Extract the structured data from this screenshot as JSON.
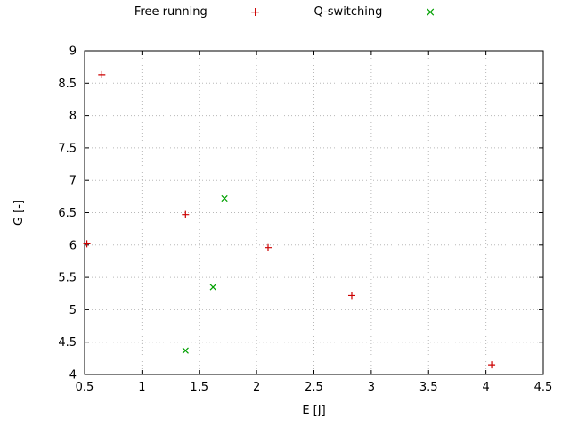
{
  "chart_data": {
    "type": "scatter",
    "title": "",
    "xlabel": "E [J]",
    "ylabel": "G [-]",
    "xlim": [
      0.5,
      4.5
    ],
    "ylim": [
      4,
      9
    ],
    "xticks": [
      0.5,
      1,
      1.5,
      2,
      2.5,
      3,
      3.5,
      4,
      4.5
    ],
    "yticks": [
      4,
      4.5,
      5,
      5.5,
      6,
      6.5,
      7,
      7.5,
      8,
      8.5,
      9
    ],
    "grid": true,
    "grid_style": "dotted",
    "grid_color": "#b8b8b8",
    "border_color": "#000000",
    "legend_position": "top-center-outside",
    "series": [
      {
        "name": "Free running",
        "marker": "plus",
        "glyph": "+",
        "color": "#cc0000",
        "points": [
          [
            0.52,
            6.02
          ],
          [
            0.65,
            8.63
          ],
          [
            1.38,
            6.47
          ],
          [
            2.1,
            5.96
          ],
          [
            2.83,
            5.22
          ],
          [
            4.05,
            4.15
          ]
        ]
      },
      {
        "name": "Q-switching",
        "marker": "cross",
        "glyph": "×",
        "color": "#00a000",
        "points": [
          [
            1.72,
            6.72
          ],
          [
            1.62,
            5.35
          ],
          [
            1.38,
            4.37
          ]
        ]
      }
    ]
  }
}
